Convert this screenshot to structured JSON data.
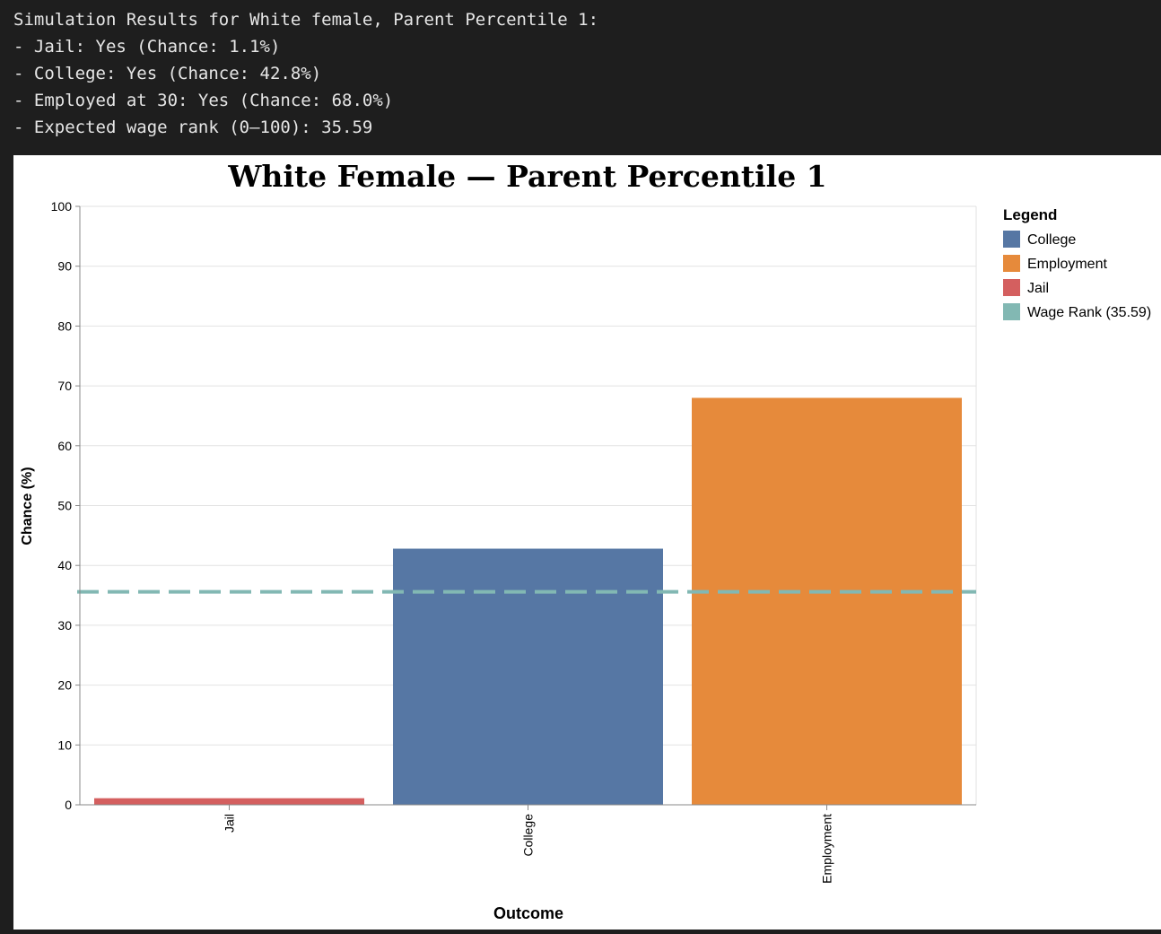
{
  "console": {
    "lines": [
      "Simulation Results for White female, Parent Percentile 1:",
      "- Jail: Yes (Chance: 1.1%)",
      "- College: Yes (Chance: 42.8%)",
      "- Employed at 30: Yes (Chance: 68.0%)",
      "- Expected wage rank (0–100): 35.59"
    ]
  },
  "chart_data": {
    "type": "bar",
    "title": "White Female — Parent Percentile 1",
    "xlabel": "Outcome",
    "ylabel": "Chance (%)",
    "ylim": [
      0,
      100
    ],
    "yticks": [
      0,
      10,
      20,
      30,
      40,
      50,
      60,
      70,
      80,
      90,
      100
    ],
    "grid": true,
    "categories": [
      "Jail",
      "College",
      "Employment"
    ],
    "values": [
      1.1,
      42.8,
      68.0
    ],
    "colors": [
      "#d45f5f",
      "#5677a4",
      "#e68a3b"
    ],
    "rule": {
      "label": "Wage Rank (35.59)",
      "value": 35.59,
      "color": "#82b8b3",
      "style": "dashed"
    },
    "legend": {
      "title": "Legend",
      "position": "right",
      "entries": [
        {
          "label": "College",
          "color": "#5677a4"
        },
        {
          "label": "Employment",
          "color": "#e68a3b"
        },
        {
          "label": "Jail",
          "color": "#d45f5f"
        },
        {
          "label": "Wage Rank (35.59)",
          "color": "#82b8b3"
        }
      ]
    }
  }
}
